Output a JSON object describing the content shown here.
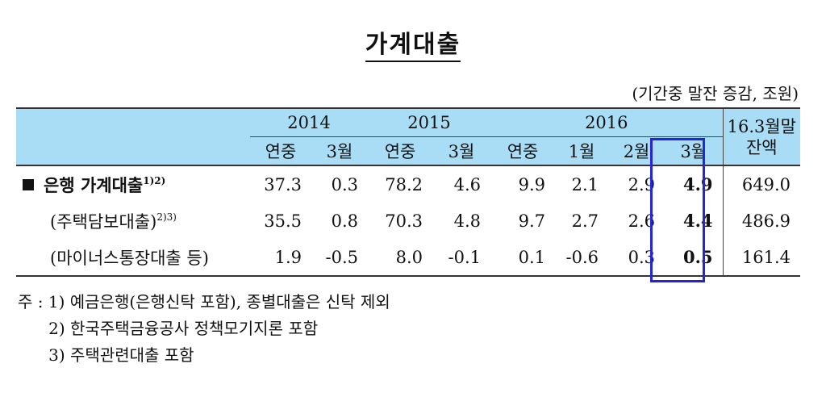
{
  "title": "가계대출",
  "unit": "(기간중 말잔 증감, 조원)",
  "table": {
    "years": [
      {
        "label": "2014",
        "bold": false
      },
      {
        "label": "2015",
        "bold": false
      },
      {
        "label": "2016",
        "bold": true
      }
    ],
    "balance_header": "16.3월말 잔액",
    "sub_headers": [
      "연중",
      "3월",
      "연중",
      "3월",
      "연중",
      "1월",
      "2월",
      "3월"
    ],
    "rows": [
      {
        "label": "은행 가계대출",
        "sup": "1)2)",
        "values": [
          "37.3",
          "0.3",
          "78.2",
          "4.6",
          "9.9",
          "2.1",
          "2.9",
          "4.9"
        ],
        "balance": "649.0"
      },
      {
        "label": "(주택담보대출)",
        "sup": "2)3)",
        "values": [
          "35.5",
          "0.8",
          "70.3",
          "4.8",
          "9.7",
          "2.7",
          "2.6",
          "4.4"
        ],
        "balance": "486.9"
      },
      {
        "label": "(마이너스통장대출 등)",
        "sup": "",
        "values": [
          "1.9",
          "-0.5",
          "8.0",
          "-0.1",
          "0.1",
          "-0.6",
          "0.3",
          "0.5"
        ],
        "balance": "161.4"
      }
    ]
  },
  "notes": [
    "주 : 1) 예금은행(은행신탁 포함), 종별대출은 신탁 제외",
    "      2) 한국주택금융공사 정책모기지론 포함",
    "      3) 주택관련대출 포함"
  ],
  "colors": {
    "header_bg": "#a9ddf6",
    "highlight_border": "#2426d6"
  }
}
